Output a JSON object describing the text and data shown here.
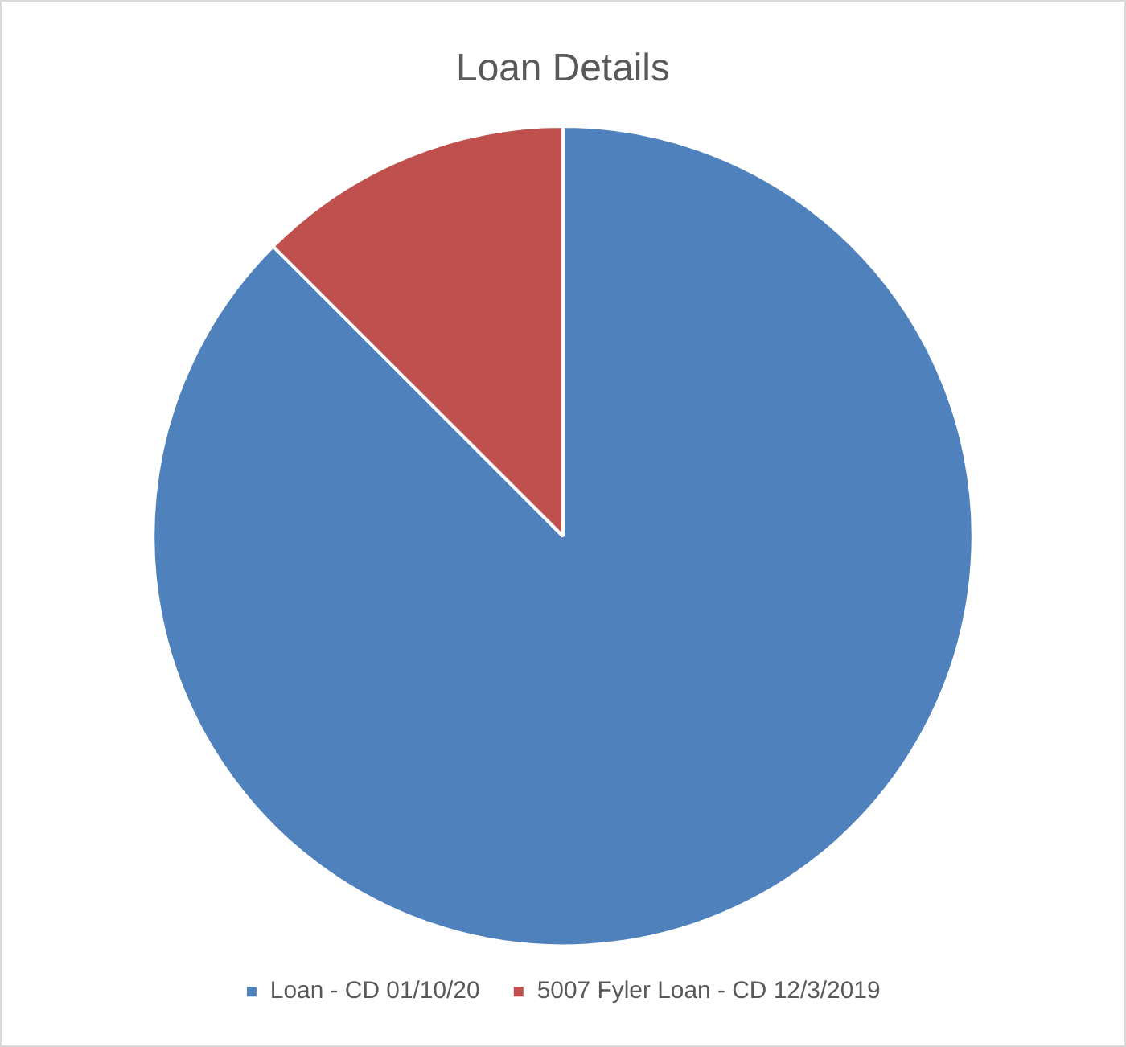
{
  "chart_data": {
    "type": "pie",
    "title": "Loan Details",
    "categories": [
      "Loan - CD 01/10/20",
      "5007 Fyler Loan - CD 12/3/2019"
    ],
    "values": [
      87.5,
      12.5
    ],
    "colors": [
      "#4f81bd",
      "#c0504d"
    ],
    "legend": "bottom"
  }
}
